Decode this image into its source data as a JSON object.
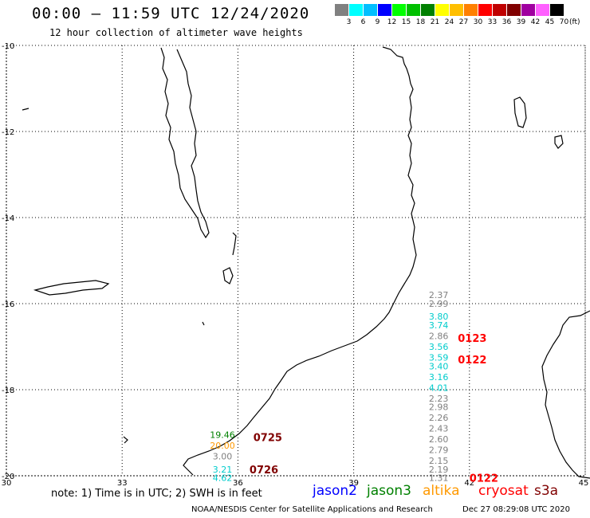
{
  "header": {
    "title": "00:00 – 11:59 UTC 12/24/2020",
    "subtitle": "12 hour collection of altimeter wave heights"
  },
  "legend": {
    "colors": [
      "#808080",
      "#00ffff",
      "#00bfff",
      "#0000ff",
      "#00ff00",
      "#00c000",
      "#008000",
      "#ffff00",
      "#ffbf00",
      "#ff8000",
      "#ff0000",
      "#c00000",
      "#800000",
      "#a000a0",
      "#ff60ff",
      "#000000"
    ],
    "labels": [
      "3",
      "6",
      "9",
      "12",
      "15",
      "18",
      "21",
      "24",
      "27",
      "30",
      "33",
      "36",
      "39",
      "42",
      "45",
      "70"
    ],
    "unit": "(ft)"
  },
  "map": {
    "lon_range": [
      30,
      45
    ],
    "lat_range": [
      -20,
      -10
    ],
    "lon_ticks": [
      "30",
      "33",
      "36",
      "39",
      "42",
      "45"
    ],
    "lat_ticks": [
      "-10",
      "-12",
      "-14",
      "-16",
      "-18",
      "-20"
    ]
  },
  "observations": [
    {
      "lon": 41.2,
      "lat": -15.8,
      "text": "2.37",
      "color": "#808080"
    },
    {
      "lon": 41.2,
      "lat": -16.0,
      "text": "2.99",
      "color": "#808080"
    },
    {
      "lon": 41.2,
      "lat": -16.3,
      "text": "3.80",
      "color": "#00cccc"
    },
    {
      "lon": 41.2,
      "lat": -16.5,
      "text": "3.74",
      "color": "#00cccc"
    },
    {
      "lon": 41.2,
      "lat": -16.75,
      "text": "2.86",
      "color": "#808080"
    },
    {
      "lon": 41.2,
      "lat": -17.0,
      "text": "3.56",
      "color": "#00cccc"
    },
    {
      "lon": 41.2,
      "lat": -17.25,
      "text": "3.59",
      "color": "#00cccc"
    },
    {
      "lon": 41.2,
      "lat": -17.45,
      "text": "3.40",
      "color": "#00cccc"
    },
    {
      "lon": 41.2,
      "lat": -17.7,
      "text": "3.16",
      "color": "#00cccc"
    },
    {
      "lon": 41.2,
      "lat": -17.95,
      "text": "4.01",
      "color": "#00cccc"
    },
    {
      "lon": 41.2,
      "lat": -18.2,
      "text": "2.23",
      "color": "#808080"
    },
    {
      "lon": 41.2,
      "lat": -18.4,
      "text": "2.98",
      "color": "#808080"
    },
    {
      "lon": 41.2,
      "lat": -18.65,
      "text": "2.26",
      "color": "#808080"
    },
    {
      "lon": 41.2,
      "lat": -18.9,
      "text": "2.43",
      "color": "#808080"
    },
    {
      "lon": 41.2,
      "lat": -19.15,
      "text": "2.60",
      "color": "#808080"
    },
    {
      "lon": 41.2,
      "lat": -19.4,
      "text": "2.79",
      "color": "#808080"
    },
    {
      "lon": 41.2,
      "lat": -19.65,
      "text": "2.15",
      "color": "#808080"
    },
    {
      "lon": 41.2,
      "lat": -19.85,
      "text": "2.19",
      "color": "#808080"
    },
    {
      "lon": 41.2,
      "lat": -20.05,
      "text": "1.31",
      "color": "#808080"
    },
    {
      "lon": 35.6,
      "lat": -19.05,
      "text": "19.46",
      "color": "#008000"
    },
    {
      "lon": 35.6,
      "lat": -19.3,
      "text": "20.00",
      "color": "#ff9900"
    },
    {
      "lon": 35.6,
      "lat": -19.55,
      "text": "3.00",
      "color": "#808080"
    },
    {
      "lon": 35.6,
      "lat": -19.85,
      "text": "3.21",
      "color": "#00cccc"
    },
    {
      "lon": 35.6,
      "lat": -20.05,
      "text": "4.62",
      "color": "#00cccc"
    }
  ],
  "pass_times": [
    {
      "lon": 41.7,
      "lat": -16.8,
      "text": "0123",
      "color": "#ff0000"
    },
    {
      "lon": 41.7,
      "lat": -17.3,
      "text": "0122",
      "color": "#ff0000"
    },
    {
      "lon": 42.0,
      "lat": -20.05,
      "text": "0122",
      "color": "#ff0000"
    },
    {
      "lon": 36.4,
      "lat": -19.1,
      "text": "0725",
      "color": "#800000"
    },
    {
      "lon": 36.3,
      "lat": -19.85,
      "text": "0726",
      "color": "#800000"
    }
  ],
  "footer": {
    "note": "note: 1) Time is in UTC; 2) SWH is in feet",
    "satellites": [
      {
        "name": "jason2",
        "color": "#0000ff"
      },
      {
        "name": "jason3",
        "color": "#008000"
      },
      {
        "name": "altika",
        "color": "#ff9900"
      },
      {
        "name": "cryosat",
        "color": "#ff0000"
      },
      {
        "name": "s3a",
        "color": "#800000"
      }
    ],
    "credit": "NOAA/NESDIS Center for Satellite Applications and Research",
    "timestamp": "Dec 27 08:29:08 UTC 2020"
  }
}
